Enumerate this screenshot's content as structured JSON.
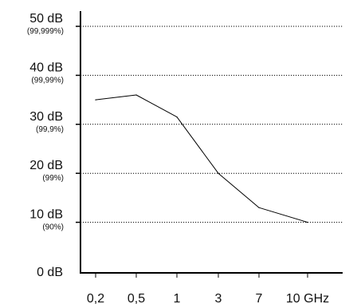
{
  "chart_data": {
    "type": "line",
    "title": "",
    "xlabel": "",
    "ylabel": "",
    "x_axis": {
      "scale": "categorical",
      "tick_labels": [
        "0,2",
        "0,5",
        "1",
        "3",
        "7",
        "10 GHz"
      ]
    },
    "y_axis": {
      "range": [
        0,
        50
      ],
      "ticks": [
        {
          "value": 0,
          "label": "0 dB",
          "sublabel": ""
        },
        {
          "value": 10,
          "label": "10 dB",
          "sublabel": "(90%)"
        },
        {
          "value": 20,
          "label": "20 dB",
          "sublabel": "(99%)"
        },
        {
          "value": 30,
          "label": "30 dB",
          "sublabel": "(99,9%)"
        },
        {
          "value": 40,
          "label": "40 dB",
          "sublabel": "(99,99%)"
        },
        {
          "value": 50,
          "label": "50 dB",
          "sublabel": "(99,999%)"
        }
      ]
    },
    "grid": {
      "horizontal": true,
      "style": "dotted",
      "vertical": false
    },
    "legend": "none",
    "series": [
      {
        "x": [
          "0,2",
          "0,5",
          "1",
          "3",
          "7",
          "10 GHz"
        ],
        "values": [
          35,
          36,
          31.5,
          20,
          13,
          10
        ]
      }
    ],
    "colors": {
      "line": "#000000",
      "grid": "#000000",
      "axis": "#000000",
      "text": "#111111"
    }
  }
}
